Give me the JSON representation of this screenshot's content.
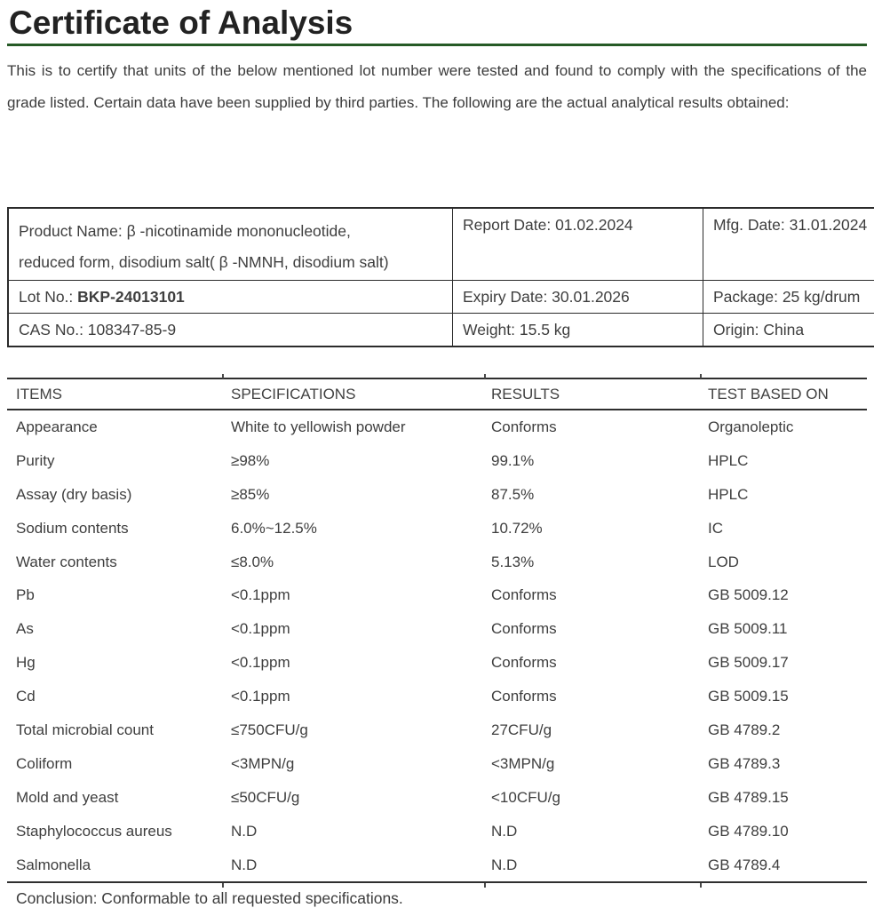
{
  "title": "Certificate of Analysis",
  "intro": "This is to certify that units of the below mentioned lot number were tested and found to comply with the specifications of the grade listed. Certain data have been supplied by third parties.  The following are the actual analytical results obtained:",
  "colors": {
    "accent_green": "#265a26",
    "text": "#3c3c3c",
    "border": "#2b2b2b"
  },
  "product_info": {
    "product_name": "Product Name: β -nicotinamide mononucleotide,\nreduced form, disodium salt( β -NMNH, disodium salt)",
    "report_date": "Report Date: 01.02.2024",
    "mfg_date": "Mfg. Date: 31.01.2024",
    "lot_no_label": "Lot No.: ",
    "lot_no_value": "BKP-24013101",
    "expiry_date": "Expiry Date: 30.01.2026",
    "package": "Package: 25 kg/drum",
    "cas_no": "CAS No.: 108347-85-9",
    "weight": "Weight: 15.5 kg",
    "origin": "Origin: China"
  },
  "spec_table": {
    "headers": [
      "ITEMS",
      "SPECIFICATIONS",
      "RESULTS",
      "TEST BASED ON"
    ],
    "rows": [
      [
        "Appearance",
        "White to yellowish powder",
        "Conforms",
        "Organoleptic"
      ],
      [
        "Purity",
        "≥98%",
        "99.1%",
        "HPLC"
      ],
      [
        "Assay (dry basis)",
        "≥85%",
        "87.5%",
        "HPLC"
      ],
      [
        "Sodium contents",
        "6.0%~12.5%",
        "10.72%",
        "IC"
      ],
      [
        "Water contents",
        "≤8.0%",
        "5.13%",
        "LOD"
      ],
      [
        "Pb",
        "<0.1ppm",
        "Conforms",
        "GB 5009.12"
      ],
      [
        "As",
        "<0.1ppm",
        "Conforms",
        "GB 5009.11"
      ],
      [
        "Hg",
        "<0.1ppm",
        "Conforms",
        "GB 5009.17"
      ],
      [
        "Cd",
        "<0.1ppm",
        "Conforms",
        "GB 5009.15"
      ],
      [
        "Total microbial count",
        "≤750CFU/g",
        "27CFU/g",
        "GB 4789.2"
      ],
      [
        "Coliform",
        "<3MPN/g",
        "<3MPN/g",
        "GB 4789.3"
      ],
      [
        "Mold and yeast",
        "≤50CFU/g",
        "<10CFU/g",
        "GB 4789.15"
      ],
      [
        "Staphylococcus aureus",
        "N.D",
        "N.D",
        "GB 4789.10"
      ],
      [
        "Salmonella",
        "N.D",
        "N.D",
        "GB 4789.4"
      ]
    ]
  },
  "conclusion": "Conclusion: Conformable to all requested specifications."
}
